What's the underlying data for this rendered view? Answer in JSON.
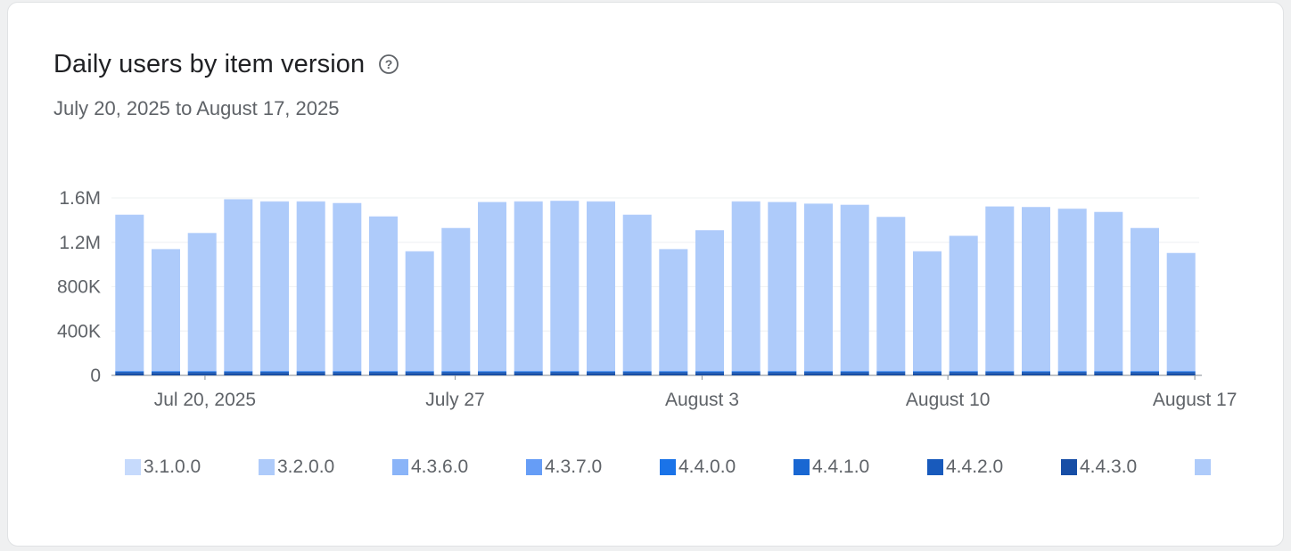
{
  "card": {
    "title": "Daily users by item version",
    "subtitle": "July 20, 2025 to August 17, 2025",
    "help_glyph": "?"
  },
  "chart_data": {
    "type": "stacked-bar",
    "title": "Daily users by item version",
    "date_range": "July 20, 2025 to August 17, 2025",
    "y_axis": {
      "min": 0,
      "max": 1600000,
      "ticks": [
        {
          "label": "0",
          "value": 0
        },
        {
          "label": "400K",
          "value": 400000
        },
        {
          "label": "800K",
          "value": 800000
        },
        {
          "label": "1.2M",
          "value": 1200000
        },
        {
          "label": "1.6M",
          "value": 1600000
        }
      ]
    },
    "x_ticks": [
      {
        "label": "Jul 20, 2025",
        "pos": 0.086
      },
      {
        "label": "July 27",
        "pos": 0.316
      },
      {
        "label": "August 3",
        "pos": 0.543
      },
      {
        "label": "August 10",
        "pos": 0.769
      },
      {
        "label": "August 17",
        "pos": 0.996
      }
    ],
    "series": [
      {
        "name": "3.1.0.0",
        "color": "#c6dafc",
        "value_per_day": 3000
      },
      {
        "name": "3.2.0.0",
        "color": "#aecbfa",
        "remainder": true
      },
      {
        "name": "4.3.6.0",
        "color": "#8ab4f8",
        "value_per_day": 3000
      },
      {
        "name": "4.3.7.0",
        "color": "#669df6",
        "value_per_day": 3000
      },
      {
        "name": "4.4.0.0",
        "color": "#1a73e8",
        "value_per_day": 4000
      },
      {
        "name": "4.4.1.0",
        "color": "#1967d2",
        "value_per_day": 5000
      },
      {
        "name": "4.4.2.0",
        "color": "#185abc",
        "value_per_day": 6000
      },
      {
        "name": "4.4.3.0",
        "color": "#174ea6",
        "value_per_day": 22000
      },
      {
        "name": "",
        "color": "#aecbfa",
        "value_per_day": 0
      }
    ],
    "daily_totals": [
      1450000,
      1140000,
      1285000,
      1590000,
      1570000,
      1570000,
      1555000,
      1435000,
      1120000,
      1330000,
      1565000,
      1570000,
      1575000,
      1570000,
      1450000,
      1140000,
      1310000,
      1570000,
      1565000,
      1550000,
      1540000,
      1430000,
      1120000,
      1260000,
      1525000,
      1520000,
      1505000,
      1475000,
      1330000,
      1105000
    ],
    "colors": {
      "axis": "#9aa0a6",
      "grid": "#f1f3f4",
      "label": "#5f6368"
    },
    "legend_position": "bottom",
    "grid": true
  }
}
